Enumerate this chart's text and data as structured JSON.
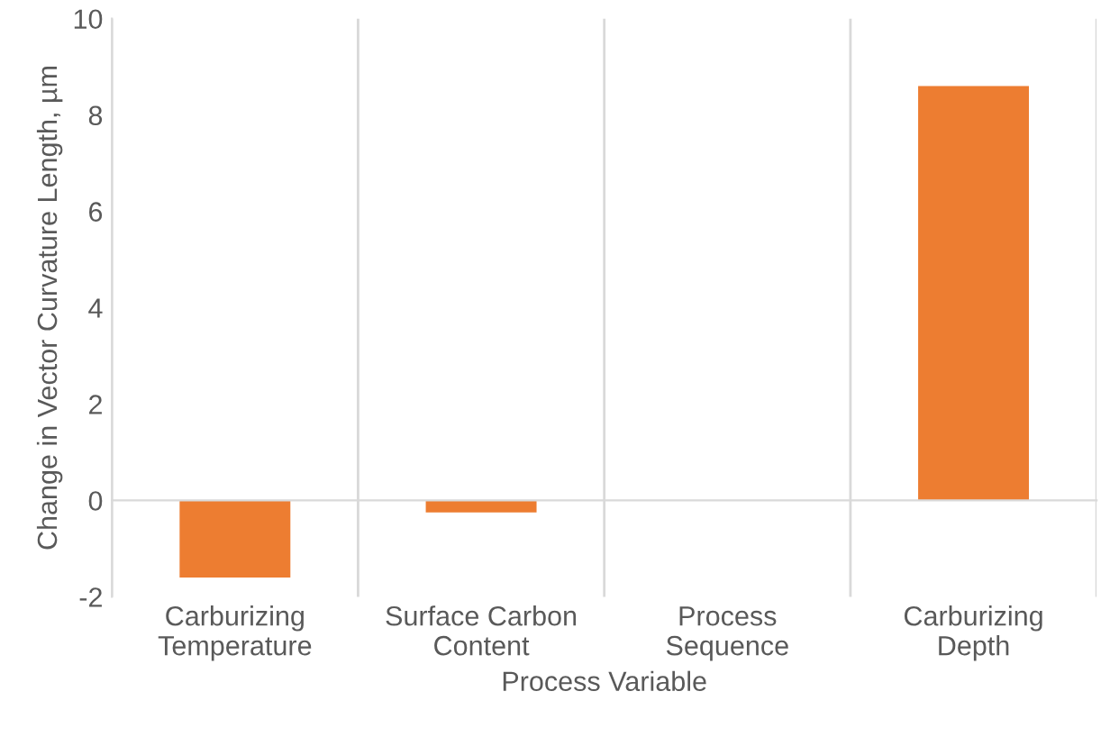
{
  "chart_data": {
    "type": "bar",
    "xlabel": "Process Variable",
    "ylabel": "Change in Vector Curvature Length, µm",
    "categories": [
      "Carburizing\nTemperature",
      "Surface Carbon\nContent",
      "Process\nSequence",
      "Carburizing\nDepth"
    ],
    "values": [
      -1.6,
      -0.25,
      0,
      8.6
    ],
    "color": "#ed7d31",
    "ylim": [
      -2,
      10
    ],
    "yticks": [
      -2,
      0,
      2,
      4,
      6,
      8,
      10
    ],
    "grid": "x"
  }
}
